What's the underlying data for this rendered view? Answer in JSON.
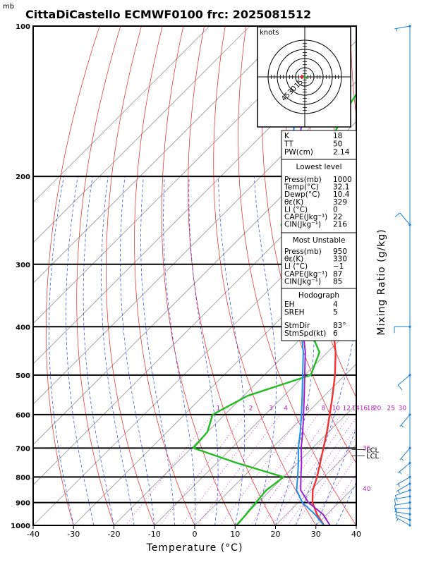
{
  "header": {
    "pressure_unit": "mb",
    "title": "CittaDiCastello ECMWF0100 frc: 2025081512"
  },
  "chart_data": {
    "type": "skew-t log-p sounding",
    "xlabel": "Temperature (°C)",
    "ylabel_right": "Mixing Ratio (g/kg)",
    "x_ticks": [
      -40,
      -30,
      -20,
      -10,
      0,
      10,
      20,
      30,
      40
    ],
    "pressure_ticks": [
      100,
      200,
      300,
      400,
      500,
      600,
      700,
      800,
      900,
      1000
    ],
    "temperature_at_1000hPa_range": [
      -40,
      40
    ],
    "pressure_range": [
      100,
      1000
    ],
    "mixing_ratio_labels": [
      {
        "p": 580,
        "w": 1,
        "text": "1"
      },
      {
        "p": 580,
        "w": 2,
        "text": "2"
      },
      {
        "p": 580,
        "w": 3,
        "text": "3"
      },
      {
        "p": 580,
        "w": 4,
        "text": "4"
      },
      {
        "p": 580,
        "w": 6,
        "text": "6"
      },
      {
        "p": 580,
        "w": 8,
        "text": "8"
      },
      {
        "p": 580,
        "w": 10,
        "text": "10"
      },
      {
        "p": 580,
        "w": 12,
        "text": "12"
      },
      {
        "p": 580,
        "w": 14,
        "text": "14"
      },
      {
        "p": 580,
        "w": 16,
        "text": "16"
      },
      {
        "p": 580,
        "w": 18,
        "text": "18"
      },
      {
        "p": 580,
        "w": 20,
        "text": "20"
      },
      {
        "p": 580,
        "w": 25,
        "text": "25"
      },
      {
        "p": 580,
        "w": 30,
        "text": "30"
      }
    ],
    "theta_e_labels": [
      {
        "text": "35",
        "p": 700
      },
      {
        "text": "40",
        "p": 845
      }
    ],
    "lcl_labels": [
      {
        "text": "LCL",
        "p": 705
      },
      {
        "text": "LCL",
        "p": 725
      }
    ],
    "series": [
      {
        "name": "",
        "role": "temperature",
        "color": "#ee3333",
        "points": [
          [
            1000,
            32
          ],
          [
            950,
            27.5
          ],
          [
            900,
            23.5
          ],
          [
            850,
            20.5
          ],
          [
            800,
            18.3
          ],
          [
            750,
            15.6
          ],
          [
            700,
            12.7
          ],
          [
            650,
            9.6
          ],
          [
            600,
            6
          ],
          [
            550,
            2
          ],
          [
            500,
            -2.5
          ],
          [
            450,
            -8
          ],
          [
            400,
            -15
          ],
          [
            350,
            -22
          ],
          [
            300,
            -30
          ],
          [
            250,
            -41
          ],
          [
            200,
            -50
          ],
          [
            150,
            -57
          ],
          [
            100,
            -62
          ]
        ]
      },
      {
        "name": "",
        "role": "dewpoint",
        "color": "#22bb22",
        "points": [
          [
            1000,
            10.4
          ],
          [
            950,
            10
          ],
          [
            900,
            9.5
          ],
          [
            850,
            9
          ],
          [
            800,
            10
          ],
          [
            750,
            -5
          ],
          [
            700,
            -19.5
          ],
          [
            650,
            -20
          ],
          [
            600,
            -23
          ],
          [
            550,
            -19
          ],
          [
            500,
            -8.5
          ],
          [
            450,
            -12
          ],
          [
            400,
            -21
          ],
          [
            350,
            -30
          ],
          [
            300,
            -40
          ],
          [
            250,
            -53
          ],
          [
            200,
            -57
          ],
          [
            150,
            -65
          ],
          [
            100,
            -73
          ]
        ]
      },
      {
        "name": "",
        "role": "parcel-surface",
        "color": "#1f8fe8",
        "points": [
          [
            1000,
            32
          ],
          [
            950,
            27
          ],
          [
            900,
            21
          ],
          [
            850,
            16.5
          ],
          [
            800,
            13.5
          ],
          [
            750,
            10.2
          ],
          [
            700,
            6.5
          ],
          [
            650,
            3
          ],
          [
            600,
            -1
          ],
          [
            550,
            -5.5
          ],
          [
            500,
            -10.5
          ],
          [
            450,
            -16
          ],
          [
            400,
            -23
          ],
          [
            350,
            -31
          ],
          [
            300,
            -40
          ],
          [
            250,
            -52
          ],
          [
            200,
            -63
          ],
          [
            150,
            -77
          ],
          [
            100,
            -92
          ]
        ]
      },
      {
        "name": "",
        "role": "parcel-most-unstable",
        "color": "#9922cc",
        "points": [
          [
            1000,
            33.5
          ],
          [
            950,
            29
          ],
          [
            900,
            22.5
          ],
          [
            850,
            17.5
          ],
          [
            800,
            14.3
          ],
          [
            750,
            11
          ],
          [
            700,
            7.2
          ],
          [
            650,
            3.6
          ],
          [
            600,
            -0.5
          ],
          [
            550,
            -5
          ],
          [
            500,
            -10
          ],
          [
            450,
            -15.5
          ],
          [
            400,
            -22.5
          ],
          [
            350,
            -30
          ],
          [
            300,
            -39
          ],
          [
            250,
            -51
          ],
          [
            200,
            -62
          ],
          [
            150,
            -75
          ],
          [
            120,
            -85
          ]
        ]
      }
    ],
    "hodograph": {
      "unit_label": "knots",
      "ring_labels": [
        "15",
        "30",
        "45"
      ],
      "ring_values_kt": [
        15,
        30,
        45
      ],
      "points_kt": [
        [
          2,
          -3
        ],
        [
          3,
          -2
        ],
        [
          1,
          0
        ],
        [
          -1,
          1
        ],
        [
          -2,
          2
        ]
      ],
      "storm_motion_kt": [
        -6,
        0
      ]
    },
    "wind_barbs": [
      {
        "p": 1000,
        "dir": 300,
        "kt": 5
      },
      {
        "p": 975,
        "dir": 290,
        "kt": 5
      },
      {
        "p": 950,
        "dir": 280,
        "kt": 5
      },
      {
        "p": 925,
        "dir": 270,
        "kt": 5
      },
      {
        "p": 900,
        "dir": 260,
        "kt": 10
      },
      {
        "p": 875,
        "dir": 260,
        "kt": 10
      },
      {
        "p": 850,
        "dir": 250,
        "kt": 10
      },
      {
        "p": 825,
        "dir": 240,
        "kt": 5
      },
      {
        "p": 800,
        "dir": 240,
        "kt": 5
      },
      {
        "p": 750,
        "dir": 230,
        "kt": 5
      },
      {
        "p": 700,
        "dir": 220,
        "kt": 5
      },
      {
        "p": 600,
        "dir": 220,
        "kt": 5
      },
      {
        "p": 500,
        "dir": 230,
        "kt": 10
      },
      {
        "p": 400,
        "dir": 270,
        "kt": 10
      },
      {
        "p": 250,
        "dir": 320,
        "kt": 10
      },
      {
        "p": 100,
        "dir": 260,
        "kt": 5
      }
    ]
  },
  "indices": {
    "k_label": "K",
    "k_value": "18",
    "tt_label": "TT",
    "tt_value": "50",
    "pw_label": "PW(cm)",
    "pw_value": "2.14",
    "lowest_title": "Lowest level",
    "lowest": [
      {
        "label": "Press(mb)",
        "value": "1000"
      },
      {
        "label": "Temp(°C)",
        "value": "32.1"
      },
      {
        "label": "Dewp(°C)",
        "value": "10.4"
      },
      {
        "label": "θε(K)",
        "value": "329"
      },
      {
        "label": "LI (°C)",
        "value": "0"
      },
      {
        "label": "CAPE(Jkg⁻¹)",
        "value": "22"
      },
      {
        "label": "CIN(Jkg⁻¹)",
        "value": "216"
      }
    ],
    "mu_title": "Most Unstable",
    "mu": [
      {
        "label": "Press(mb)",
        "value": "950"
      },
      {
        "label": "θε(K)",
        "value": "330"
      },
      {
        "label": "LI (°C)",
        "value": "−1"
      },
      {
        "label": "CAPE(Jkg⁻¹)",
        "value": "87"
      },
      {
        "label": "CIN(Jkg⁻¹)",
        "value": "85"
      }
    ],
    "hodo_title": "Hodograph",
    "hodo": [
      {
        "label": "EH",
        "value": "4"
      },
      {
        "label": "SREH",
        "value": "5"
      },
      {
        "label": "StmDir",
        "value": "83°"
      },
      {
        "label": "StmSpd(kt)",
        "value": "6"
      }
    ]
  },
  "colors": {
    "isotherm": "#999999",
    "dry_adiabat": "#ee2222",
    "moist_adiabat": "#2244ee",
    "mixing_ratio": "#cc22cc",
    "mixing_label": "#bb22bb",
    "frame": "#000000"
  }
}
